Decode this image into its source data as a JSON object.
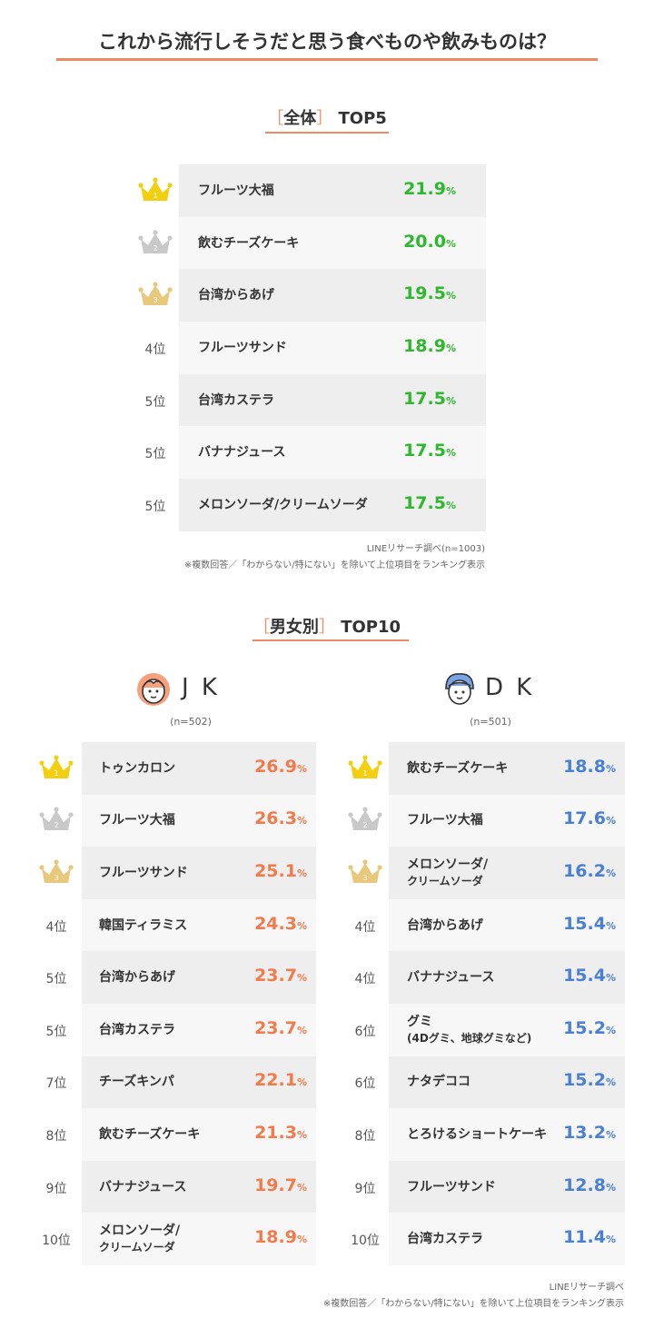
{
  "title": "これから流行しそうだと思う食べものや飲みものは？",
  "overall": {
    "heading_open": "［",
    "heading_label": "全体",
    "heading_close": "］",
    "heading_suffix": "TOP5",
    "source": "LINEリサーチ調べ(n=1003)",
    "footnote": "※複数回答／「わからない/特にない」を除いて上位項目をランキング表示",
    "rows": [
      {
        "rank": "",
        "crown": "gold",
        "item": "フルーツ大福",
        "value": "21.9",
        "pct": "%"
      },
      {
        "rank": "",
        "crown": "silver",
        "item": "飲むチーズケーキ",
        "value": "20.0",
        "pct": "%"
      },
      {
        "rank": "",
        "crown": "bronze",
        "item": "台湾からあげ",
        "value": "19.5",
        "pct": "%"
      },
      {
        "rank": "4位",
        "crown": "",
        "item": "フルーツサンド",
        "value": "18.9",
        "pct": "%"
      },
      {
        "rank": "5位",
        "crown": "",
        "item": "台湾カステラ",
        "value": "17.5",
        "pct": "%"
      },
      {
        "rank": "5位",
        "crown": "",
        "item": "バナナジュース",
        "value": "17.5",
        "pct": "%"
      },
      {
        "rank": "5位",
        "crown": "",
        "item": "メロンソーダ/クリームソーダ",
        "value": "17.5",
        "pct": "%"
      }
    ]
  },
  "gender": {
    "heading_open": "［",
    "heading_label": "男女別",
    "heading_close": "］",
    "heading_suffix": "TOP10",
    "source": "LINEリサーチ調べ",
    "footnote": "※複数回答／「わからない/特にない」を除いて上位項目をランキング表示",
    "jk": {
      "label": "J K",
      "n": "(n=502)",
      "rows": [
        {
          "rank": "",
          "crown": "gold",
          "item": "トゥンカロン",
          "sub": "",
          "value": "26.9",
          "pct": "%"
        },
        {
          "rank": "",
          "crown": "silver",
          "item": "フルーツ大福",
          "sub": "",
          "value": "26.3",
          "pct": "%"
        },
        {
          "rank": "",
          "crown": "bronze",
          "item": "フルーツサンド",
          "sub": "",
          "value": "25.1",
          "pct": "%"
        },
        {
          "rank": "4位",
          "crown": "",
          "item": "韓国ティラミス",
          "sub": "",
          "value": "24.3",
          "pct": "%"
        },
        {
          "rank": "5位",
          "crown": "",
          "item": "台湾からあげ",
          "sub": "",
          "value": "23.7",
          "pct": "%"
        },
        {
          "rank": "5位",
          "crown": "",
          "item": "台湾カステラ",
          "sub": "",
          "value": "23.7",
          "pct": "%"
        },
        {
          "rank": "7位",
          "crown": "",
          "item": "チーズキンパ",
          "sub": "",
          "value": "22.1",
          "pct": "%"
        },
        {
          "rank": "8位",
          "crown": "",
          "item": "飲むチーズケーキ",
          "sub": "",
          "value": "21.3",
          "pct": "%"
        },
        {
          "rank": "9位",
          "crown": "",
          "item": "バナナジュース",
          "sub": "",
          "value": "19.7",
          "pct": "%"
        },
        {
          "rank": "10位",
          "crown": "",
          "item": "メロンソーダ/",
          "sub": "クリームソーダ",
          "value": "18.9",
          "pct": "%"
        }
      ]
    },
    "dk": {
      "label": "D K",
      "n": "(n=501)",
      "rows": [
        {
          "rank": "",
          "crown": "gold",
          "item": "飲むチーズケーキ",
          "sub": "",
          "value": "18.8",
          "pct": "%"
        },
        {
          "rank": "",
          "crown": "silver",
          "item": "フルーツ大福",
          "sub": "",
          "value": "17.6",
          "pct": "%"
        },
        {
          "rank": "",
          "crown": "bronze",
          "item": "メロンソーダ/",
          "sub": "クリームソーダ",
          "value": "16.2",
          "pct": "%"
        },
        {
          "rank": "4位",
          "crown": "",
          "item": "台湾からあげ",
          "sub": "",
          "value": "15.4",
          "pct": "%"
        },
        {
          "rank": "4位",
          "crown": "",
          "item": "バナナジュース",
          "sub": "",
          "value": "15.4",
          "pct": "%"
        },
        {
          "rank": "6位",
          "crown": "",
          "item": "グミ",
          "sub": "(4Dグミ、地球グミなど)",
          "value": "15.2",
          "pct": "%"
        },
        {
          "rank": "6位",
          "crown": "",
          "item": "ナタデココ",
          "sub": "",
          "value": "15.2",
          "pct": "%"
        },
        {
          "rank": "8位",
          "crown": "",
          "item": "とろけるショートケーキ",
          "sub": "",
          "value": "13.2",
          "pct": "%"
        },
        {
          "rank": "9位",
          "crown": "",
          "item": "フルーツサンド",
          "sub": "",
          "value": "12.8",
          "pct": "%"
        },
        {
          "rank": "10位",
          "crown": "",
          "item": "台湾カステラ",
          "sub": "",
          "value": "11.4",
          "pct": "%"
        }
      ]
    }
  },
  "colors": {
    "accent": "#ee8a63",
    "overall_value": "#2db82d",
    "jk_value": "#f47a4b",
    "dk_value": "#4a7fd4",
    "crown_gold": "#f2cf10",
    "crown_silver": "#c9c9c9",
    "crown_bronze": "#e8c87a"
  },
  "chart_data": [
    {
      "type": "table",
      "title": "これから流行しそうだと思う食べものや飲みものは？",
      "subtitle": "［全体］TOP5",
      "categories": [
        "フルーツ大福",
        "飲むチーズケーキ",
        "台湾からあげ",
        "フルーツサンド",
        "台湾カステラ",
        "バナナジュース",
        "メロンソーダ/クリームソーダ"
      ],
      "values": [
        21.9,
        20.0,
        19.5,
        18.9,
        17.5,
        17.5,
        17.5
      ],
      "unit": "%"
    },
    {
      "type": "table",
      "subtitle": "［男女別］TOP10 J K",
      "categories": [
        "トゥンカロン",
        "フルーツ大福",
        "フルーツサンド",
        "韓国ティラミス",
        "台湾からあげ",
        "台湾カステラ",
        "チーズキンパ",
        "飲むチーズケーキ",
        "バナナジュース",
        "メロンソーダ/クリームソーダ"
      ],
      "values": [
        26.9,
        26.3,
        25.1,
        24.3,
        23.7,
        23.7,
        22.1,
        21.3,
        19.7,
        18.9
      ],
      "unit": "%"
    },
    {
      "type": "table",
      "subtitle": "［男女別］TOP10 D K",
      "categories": [
        "飲むチーズケーキ",
        "フルーツ大福",
        "メロンソーダ/クリームソーダ",
        "台湾からあげ",
        "バナナジュース",
        "グミ(4Dグミ、地球グミなど)",
        "ナタデココ",
        "とろけるショートケーキ",
        "フルーツサンド",
        "台湾カステラ"
      ],
      "values": [
        18.8,
        17.6,
        16.2,
        15.4,
        15.4,
        15.2,
        15.2,
        13.2,
        12.8,
        11.4
      ],
      "unit": "%"
    }
  ]
}
